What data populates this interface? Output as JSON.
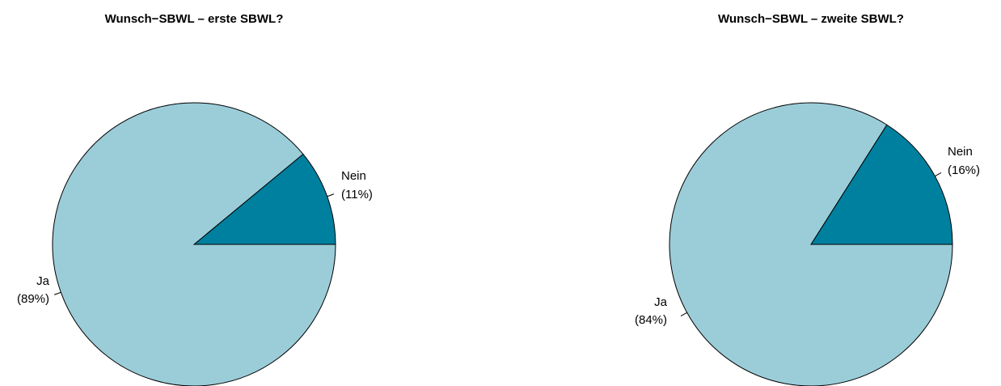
{
  "colors": {
    "nein": "#00809f",
    "ja": "#9bcdd9"
  },
  "chart_data": [
    {
      "type": "pie",
      "title": "Wunsch−SBWL – erste SBWL?",
      "slices": [
        {
          "label": "Nein",
          "pct_label": "(11%)",
          "value": 11
        },
        {
          "label": "Ja",
          "pct_label": "(89%)",
          "value": 89
        }
      ]
    },
    {
      "type": "pie",
      "title": "Wunsch−SBWL – zweite SBWL?",
      "slices": [
        {
          "label": "Nein",
          "pct_label": "(16%)",
          "value": 16
        },
        {
          "label": "Ja",
          "pct_label": "(84%)",
          "value": 84
        }
      ]
    }
  ]
}
